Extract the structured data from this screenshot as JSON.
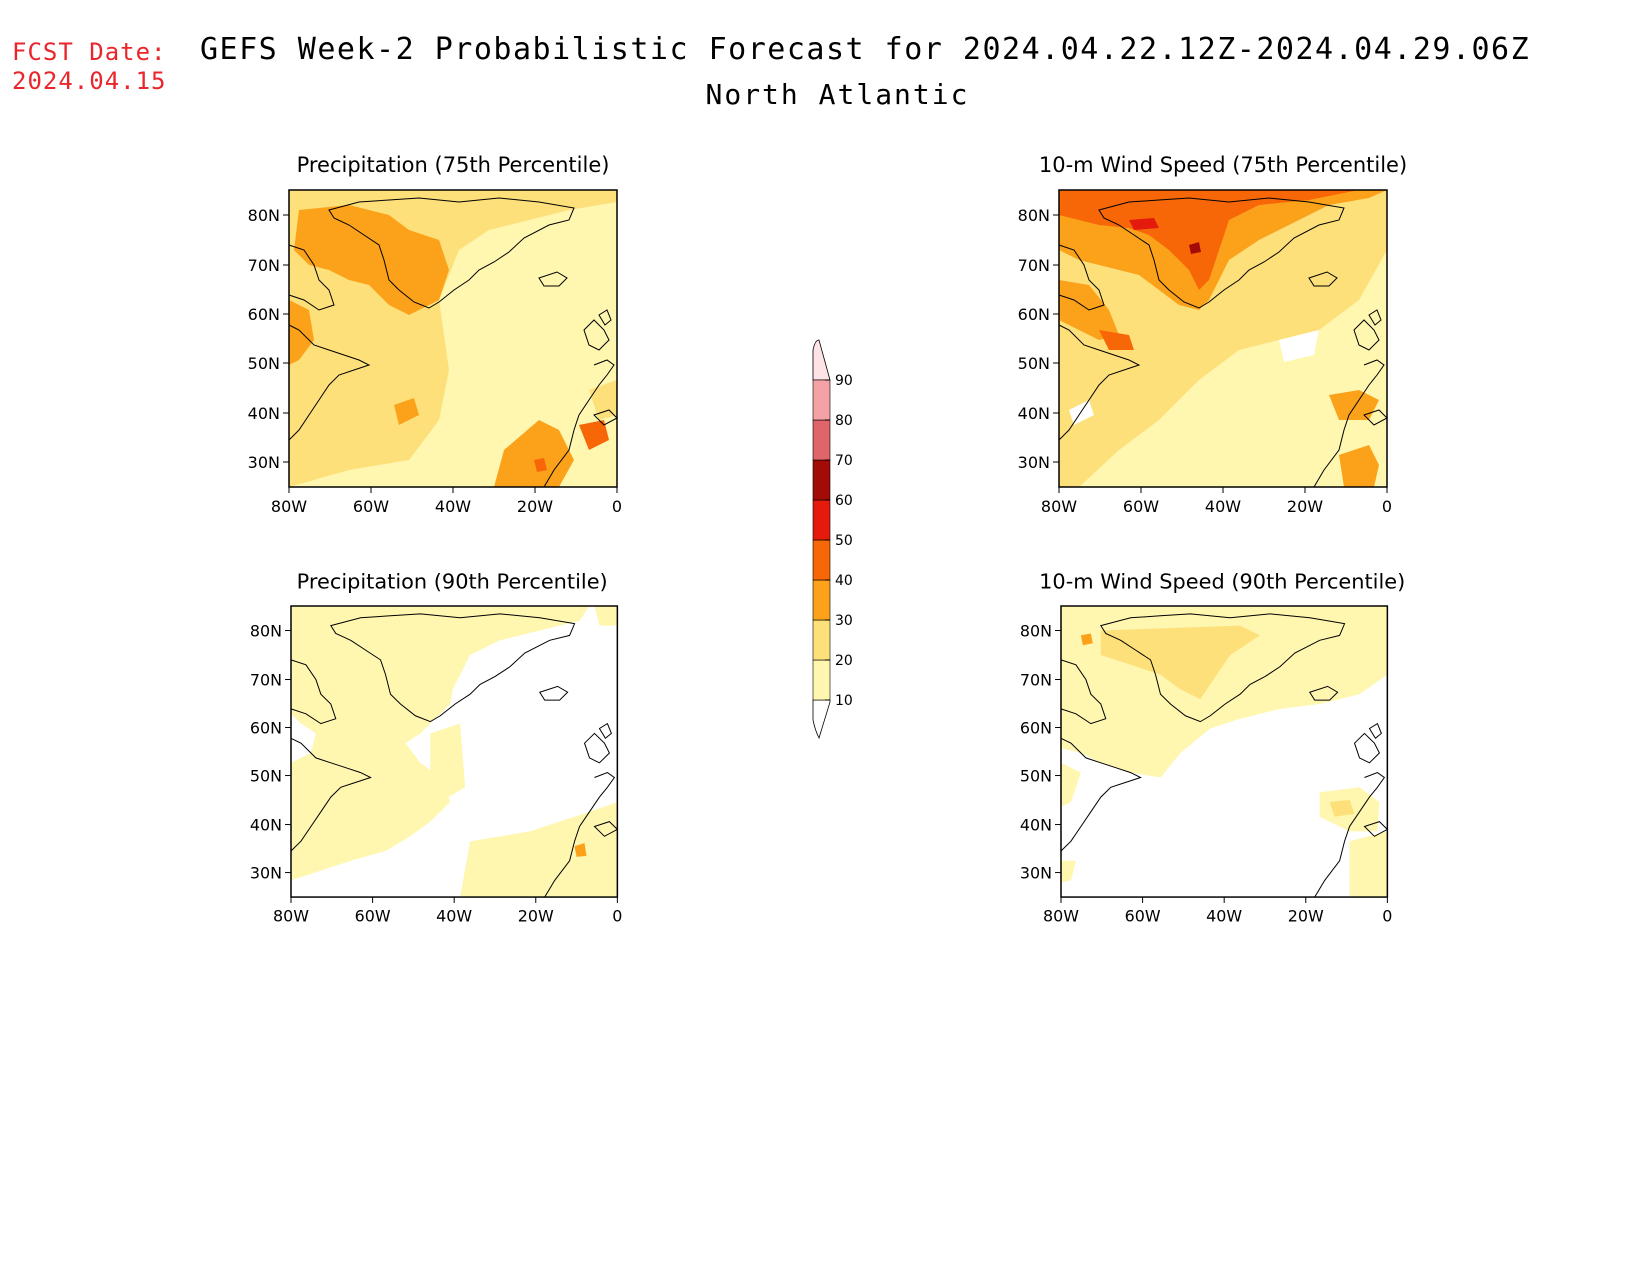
{
  "header": {
    "fcst_label": "FCST Date:",
    "fcst_date": "2024.04.15",
    "title": "GEFS Week-2 Probabilistic Forecast for 2024.04.22.12Z-2024.04.29.06Z",
    "region": "North Atlantic"
  },
  "axes": {
    "lat_ticks": [
      "80N",
      "70N",
      "60N",
      "50N",
      "40N",
      "30N"
    ],
    "lon_ticks": [
      "80W",
      "60W",
      "40W",
      "20W",
      "0"
    ],
    "lat_range": [
      25,
      85
    ],
    "lon_range": [
      -80,
      0
    ]
  },
  "panels": [
    {
      "id": "precip-75",
      "title": "Precipitation (75th Percentile)",
      "level": "high"
    },
    {
      "id": "wind-75",
      "title": "10-m Wind Speed (75th Percentile)",
      "level": "high"
    },
    {
      "id": "precip-90",
      "title": "Precipitation (90th Percentile)",
      "level": "low"
    },
    {
      "id": "wind-90",
      "title": "10-m Wind Speed (90th Percentile)",
      "level": "low"
    }
  ],
  "colorbar": {
    "levels": [
      "10",
      "20",
      "30",
      "40",
      "50",
      "60",
      "70",
      "80",
      "90"
    ],
    "colors": [
      "#fff6b0",
      "#fde07a",
      "#fba21a",
      "#f76707",
      "#e41a0c",
      "#a30c06",
      "#e0656a",
      "#f4a2a5",
      "#fde3e6"
    ]
  }
}
